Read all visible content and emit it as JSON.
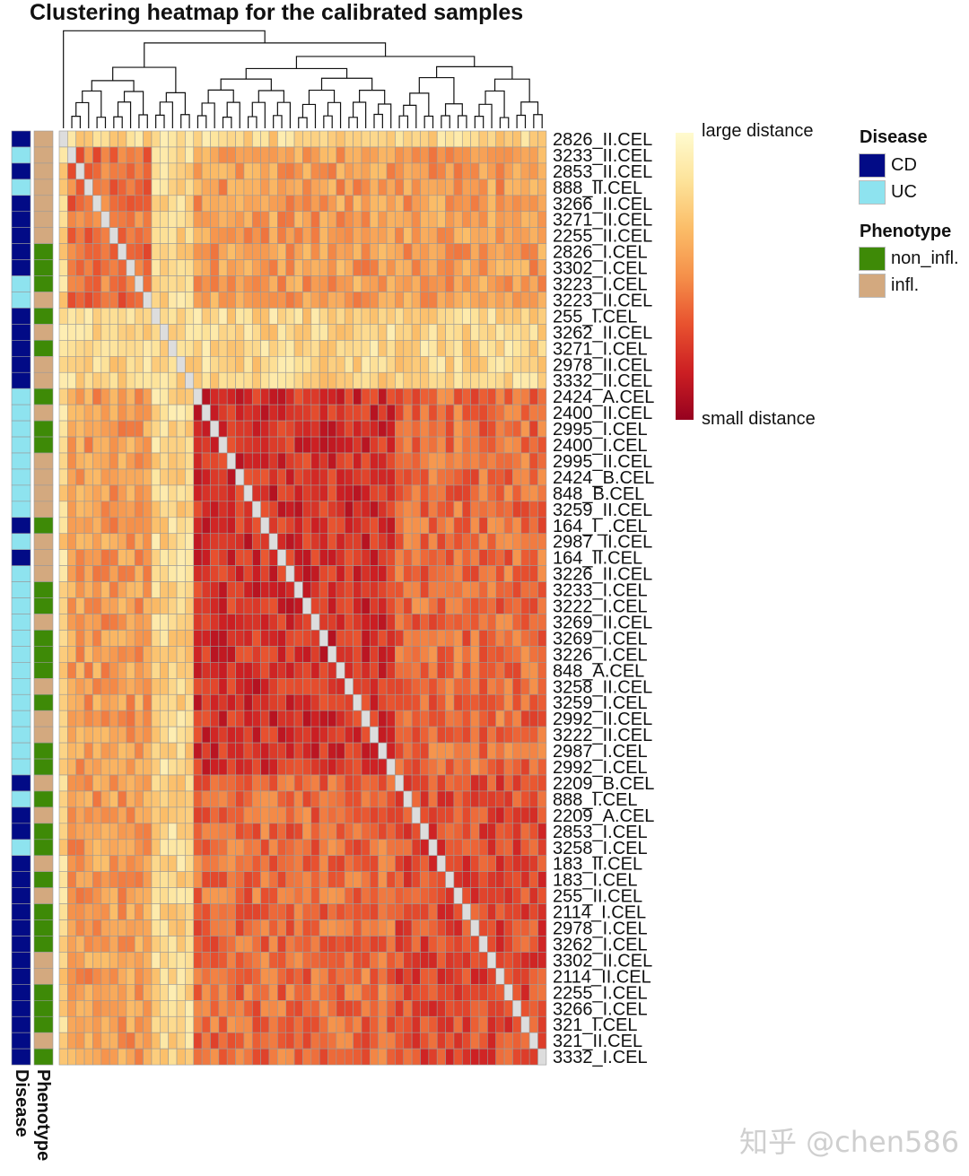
{
  "chart_data": {
    "type": "heatmap",
    "title": "Clustering heatmap for the calibrated samples",
    "samples": [
      "2826_II.CEL",
      "3233_II.CEL",
      "2853_II.CEL",
      "888_II.CEL",
      "3266_II.CEL",
      "3271_II.CEL",
      "2255_II.CEL",
      "2826_I.CEL",
      "3302_I.CEL",
      "3223_I.CEL",
      "3223_II.CEL",
      "255_I.CEL",
      "3262_II.CEL",
      "3271_I.CEL",
      "2978_II.CEL",
      "3332_II.CEL",
      "2424_A.CEL",
      "2400_II.CEL",
      "2995_I.CEL",
      "2400_I.CEL",
      "2995_II.CEL",
      "2424_B.CEL",
      "848_B.CEL",
      "3259_II.CEL",
      "164_I_.CEL",
      "2987_II.CEL",
      "164_II.CEL",
      "3226_II.CEL",
      "3233_I.CEL",
      "3222_I.CEL",
      "3269_II.CEL",
      "3269_I.CEL",
      "3226_I.CEL",
      "848_A.CEL",
      "3258_II.CEL",
      "3259_I.CEL",
      "2992_II.CEL",
      "3222_II.CEL",
      "2987_I.CEL",
      "2992_I.CEL",
      "2209_B.CEL",
      "888_I.CEL",
      "2209_A.CEL",
      "2853_I.CEL",
      "3258_I.CEL",
      "183_II.CEL",
      "183_I.CEL",
      "255_II.CEL",
      "2114_I.CEL",
      "2978_I.CEL",
      "3262_I.CEL",
      "3302_II.CEL",
      "2114_II.CEL",
      "2255_I.CEL",
      "3266_I.CEL",
      "321_I.CEL",
      "321_II.CEL",
      "3332_I.CEL"
    ],
    "disease": [
      "CD",
      "UC",
      "CD",
      "UC",
      "CD",
      "CD",
      "CD",
      "CD",
      "CD",
      "UC",
      "UC",
      "CD",
      "CD",
      "CD",
      "CD",
      "CD",
      "UC",
      "UC",
      "UC",
      "UC",
      "UC",
      "UC",
      "UC",
      "UC",
      "CD",
      "UC",
      "CD",
      "UC",
      "UC",
      "UC",
      "UC",
      "UC",
      "UC",
      "UC",
      "UC",
      "UC",
      "UC",
      "UC",
      "UC",
      "UC",
      "CD",
      "UC",
      "CD",
      "CD",
      "UC",
      "CD",
      "CD",
      "CD",
      "CD",
      "CD",
      "CD",
      "CD",
      "CD",
      "CD",
      "CD",
      "CD",
      "CD",
      "CD"
    ],
    "phenotype": [
      "infl.",
      "infl.",
      "infl.",
      "infl.",
      "infl.",
      "infl.",
      "infl.",
      "non_infl.",
      "non_infl.",
      "non_infl.",
      "infl.",
      "non_infl.",
      "infl.",
      "non_infl.",
      "infl.",
      "infl.",
      "non_infl.",
      "infl.",
      "non_infl.",
      "non_infl.",
      "infl.",
      "infl.",
      "infl.",
      "infl.",
      "non_infl.",
      "infl.",
      "infl.",
      "infl.",
      "non_infl.",
      "non_infl.",
      "infl.",
      "non_infl.",
      "non_infl.",
      "non_infl.",
      "infl.",
      "non_infl.",
      "infl.",
      "infl.",
      "non_infl.",
      "non_infl.",
      "infl.",
      "non_infl.",
      "infl.",
      "non_infl.",
      "non_infl.",
      "infl.",
      "non_infl.",
      "infl.",
      "non_infl.",
      "non_infl.",
      "non_infl.",
      "infl.",
      "infl.",
      "non_infl.",
      "non_infl.",
      "non_infl.",
      "infl.",
      "non_infl."
    ],
    "clusters": {
      "outliers": [
        0,
        11,
        12,
        13,
        14,
        15
      ],
      "uc_block": [
        16,
        17,
        18,
        19,
        20,
        21,
        22,
        23,
        24,
        25,
        26,
        27,
        28,
        29,
        30,
        31,
        32,
        33,
        34,
        35,
        36,
        37,
        38,
        39
      ],
      "cd_block": [
        40,
        41,
        42,
        43,
        44,
        45,
        46,
        47,
        48,
        49,
        50,
        51,
        52,
        53,
        54,
        55,
        56,
        57
      ]
    },
    "colorbar": {
      "high_label": "large distance",
      "low_label": "small distance",
      "colors": [
        "#fffbd0",
        "#fde39a",
        "#fbbd68",
        "#f5904a",
        "#e8522f",
        "#cc1f23",
        "#96011f"
      ]
    },
    "diagonal_color": "#dddddd",
    "grid_color": "#9a9a9a"
  },
  "legend": {
    "disease": {
      "title": "Disease",
      "items": [
        {
          "label": "CD",
          "color": "#020b86"
        },
        {
          "label": "UC",
          "color": "#8ee3ef"
        }
      ]
    },
    "phenotype": {
      "title": "Phenotype",
      "items": [
        {
          "label": "non_infl.",
          "color": "#3e8a07"
        },
        {
          "label": "infl.",
          "color": "#d3a97f"
        }
      ]
    }
  },
  "annotation_captions": {
    "disease": "Disease",
    "phenotype": "Phenotype"
  },
  "watermark": "知乎 @chen586"
}
